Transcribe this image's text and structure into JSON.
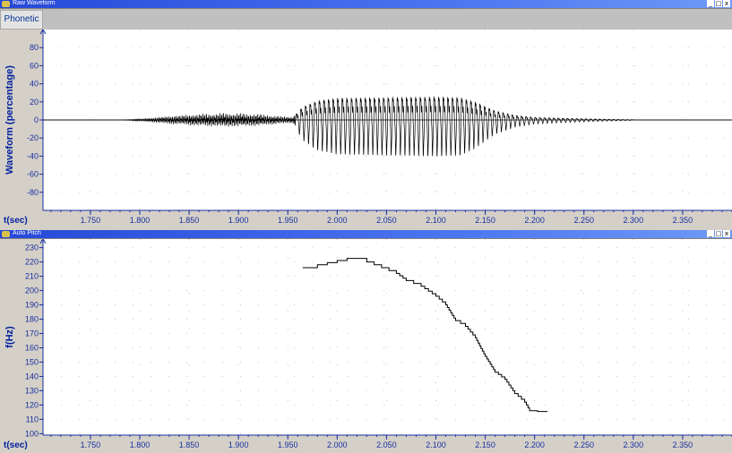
{
  "window1": {
    "title": "Raw Waveform",
    "tab_label": "Phonetic",
    "controls": [
      "_",
      "□",
      "x"
    ]
  },
  "window2": {
    "title": "Auto Pitch",
    "controls": [
      "_",
      "□",
      "x"
    ]
  },
  "chart_data": [
    {
      "type": "line",
      "title": "",
      "xlabel": "t(sec)",
      "ylabel": "Waveform (percentage)",
      "xlim": [
        1.702,
        2.4
      ],
      "ylim": [
        -100,
        100
      ],
      "xticks": [
        "1.750",
        "1.800",
        "1.850",
        "1.900",
        "1.950",
        "2.000",
        "2.050",
        "2.100",
        "2.150",
        "2.200",
        "2.250",
        "2.300",
        "2.350"
      ],
      "yticks": [
        "80",
        "60",
        "40",
        "20",
        "0",
        "-20",
        "-40",
        "-60",
        "-80"
      ],
      "grid": true,
      "envelope": [
        [
          1.78,
          0
        ],
        [
          1.8,
          1
        ],
        [
          1.83,
          4
        ],
        [
          1.86,
          6
        ],
        [
          1.89,
          7
        ],
        [
          1.92,
          6
        ],
        [
          1.94,
          4
        ],
        [
          1.955,
          3
        ],
        [
          1.965,
          20
        ],
        [
          1.98,
          30
        ],
        [
          2.0,
          34
        ],
        [
          2.05,
          35
        ],
        [
          2.1,
          36
        ],
        [
          2.125,
          35
        ],
        [
          2.14,
          28
        ],
        [
          2.16,
          14
        ],
        [
          2.18,
          7
        ],
        [
          2.2,
          4
        ],
        [
          2.22,
          3
        ],
        [
          2.26,
          1.5
        ],
        [
          2.3,
          0.5
        ]
      ]
    },
    {
      "type": "line",
      "title": "",
      "xlabel": "t(sec)",
      "ylabel": "f(Hz)",
      "xlim": [
        1.702,
        2.4
      ],
      "ylim": [
        99,
        236
      ],
      "xticks": [
        "1.750",
        "1.800",
        "1.850",
        "1.900",
        "1.950",
        "2.000",
        "2.050",
        "2.100",
        "2.150",
        "2.200",
        "2.250",
        "2.300",
        "2.350"
      ],
      "yticks": [
        "230",
        "220",
        "210",
        "200",
        "190",
        "180",
        "170",
        "160",
        "150",
        "140",
        "130",
        "120",
        "110",
        "100"
      ],
      "grid": true,
      "series": [
        {
          "x": [
            1.965,
            1.98,
            2.0,
            2.01,
            2.02,
            2.03,
            2.045,
            2.06,
            2.07,
            2.085,
            2.1,
            2.11,
            2.12,
            2.13,
            2.14,
            2.15,
            2.16,
            2.17,
            2.18,
            2.19,
            2.195,
            2.203,
            2.213
          ],
          "y": [
            216,
            218,
            221,
            222.5,
            222.5,
            220,
            216,
            212,
            207,
            203,
            196,
            190,
            179,
            175,
            167,
            154,
            143,
            138,
            128,
            122,
            116,
            115.5,
            115.5
          ]
        }
      ]
    }
  ]
}
